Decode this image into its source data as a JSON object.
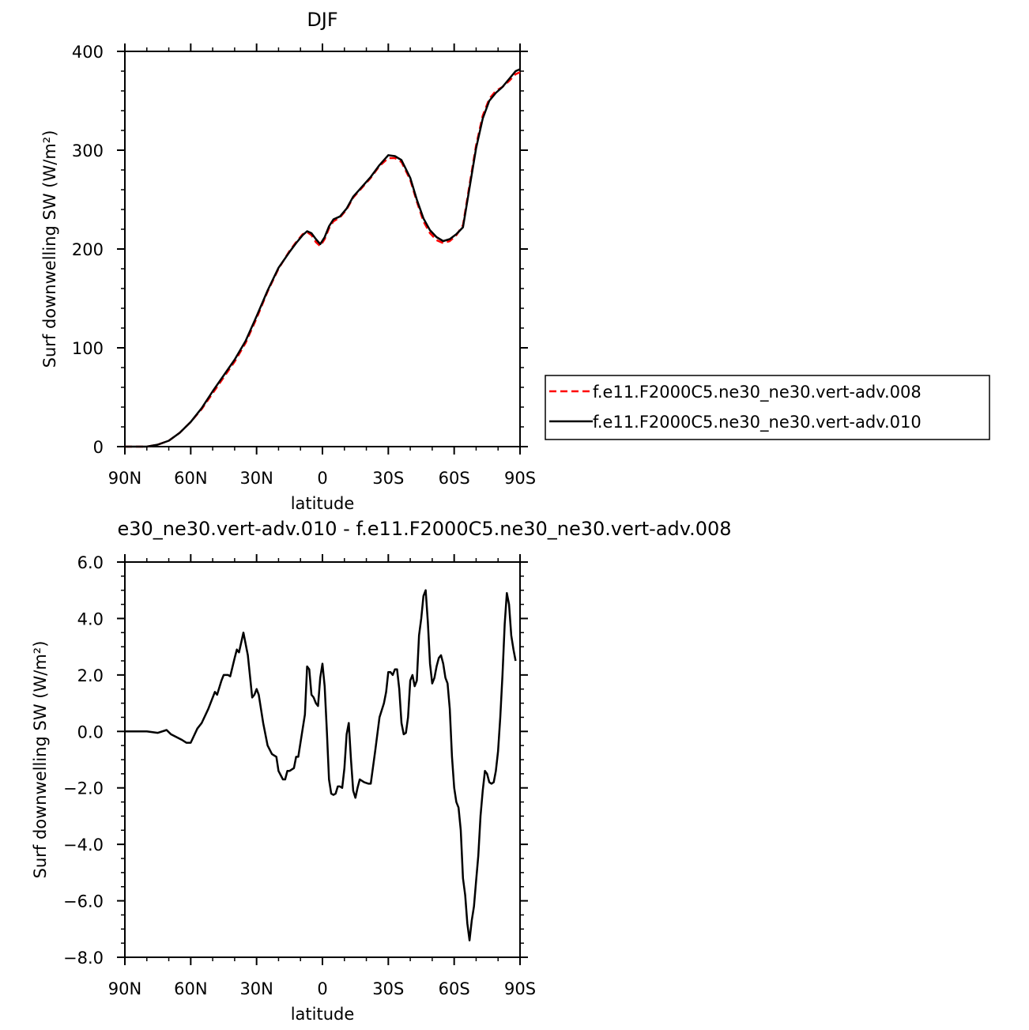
{
  "chart_data": [
    {
      "type": "line",
      "title": "DJF",
      "xlabel": "latitude",
      "ylabel": "Surf downwelling SW (W/m²)",
      "xlim": [
        -90,
        90
      ],
      "ylim": [
        0,
        400
      ],
      "x_ticks": [
        {
          "value": -90,
          "label": "90N"
        },
        {
          "value": -60,
          "label": "60N"
        },
        {
          "value": -30,
          "label": "30N"
        },
        {
          "value": 0,
          "label": "0"
        },
        {
          "value": 30,
          "label": "30S"
        },
        {
          "value": 60,
          "label": "60S"
        },
        {
          "value": 90,
          "label": "90S"
        }
      ],
      "y_ticks": [
        {
          "value": 0,
          "label": "0"
        },
        {
          "value": 100,
          "label": "100"
        },
        {
          "value": 200,
          "label": "200"
        },
        {
          "value": 300,
          "label": "300"
        },
        {
          "value": 400,
          "label": "400"
        }
      ],
      "legend_position": "right",
      "series": [
        {
          "name": "f.e11.F2000C5.ne30_ne30.vert-adv.008",
          "color": "#ff0000",
          "style": "dashed",
          "points": [
            [
              -90,
              0
            ],
            [
              -80,
              0
            ],
            [
              -75,
              2
            ],
            [
              -70,
              6
            ],
            [
              -65,
              14
            ],
            [
              -60,
              25
            ],
            [
              -55,
              38
            ],
            [
              -50,
              54
            ],
            [
              -45,
              70
            ],
            [
              -40,
              86
            ],
            [
              -35,
              105
            ],
            [
              -30,
              130
            ],
            [
              -25,
              157
            ],
            [
              -20,
              180
            ],
            [
              -15,
              198
            ],
            [
              -12,
              207
            ],
            [
              -9,
              215
            ],
            [
              -7,
              217
            ],
            [
              -5,
              214
            ],
            [
              -3,
              207
            ],
            [
              -1,
              203
            ],
            [
              1,
              210
            ],
            [
              3,
              221
            ],
            [
              5,
              228
            ],
            [
              8,
              232
            ],
            [
              11,
              240
            ],
            [
              14,
              252
            ],
            [
              18,
              262
            ],
            [
              22,
              272
            ],
            [
              26,
              284
            ],
            [
              30,
              292
            ],
            [
              33,
              292
            ],
            [
              36,
              288
            ],
            [
              40,
              270
            ],
            [
              43,
              248
            ],
            [
              46,
              228
            ],
            [
              49,
              216
            ],
            [
              52,
              209
            ],
            [
              55,
              206
            ],
            [
              58,
              208
            ],
            [
              61,
              214
            ],
            [
              64,
              224
            ],
            [
              67,
              265
            ],
            [
              70,
              305
            ],
            [
              73,
              335
            ],
            [
              76,
              352
            ],
            [
              79,
              360
            ],
            [
              82,
              364
            ],
            [
              85,
              370
            ],
            [
              88,
              377
            ],
            [
              90,
              379
            ]
          ]
        },
        {
          "name": "f.e11.F2000C5.ne30_ne30.vert-adv.010",
          "color": "#000000",
          "style": "solid",
          "points": [
            [
              -90,
              0
            ],
            [
              -80,
              0
            ],
            [
              -75,
              2
            ],
            [
              -70,
              6
            ],
            [
              -65,
              14
            ],
            [
              -60,
              25
            ],
            [
              -55,
              39
            ],
            [
              -50,
              56
            ],
            [
              -45,
              72
            ],
            [
              -40,
              88
            ],
            [
              -35,
              107
            ],
            [
              -30,
              132
            ],
            [
              -25,
              158
            ],
            [
              -20,
              181
            ],
            [
              -15,
              197
            ],
            [
              -12,
              206
            ],
            [
              -9,
              214
            ],
            [
              -7,
              218
            ],
            [
              -5,
              216
            ],
            [
              -3,
              210
            ],
            [
              -1,
              205
            ],
            [
              1,
              212
            ],
            [
              3,
              223
            ],
            [
              5,
              230
            ],
            [
              8,
              233
            ],
            [
              11,
              241
            ],
            [
              14,
              253
            ],
            [
              18,
              263
            ],
            [
              22,
              273
            ],
            [
              26,
              285
            ],
            [
              30,
              295
            ],
            [
              33,
              294
            ],
            [
              36,
              290
            ],
            [
              40,
              272
            ],
            [
              43,
              250
            ],
            [
              46,
              231
            ],
            [
              49,
              219
            ],
            [
              52,
              212
            ],
            [
              55,
              208
            ],
            [
              58,
              210
            ],
            [
              61,
              215
            ],
            [
              64,
              222
            ],
            [
              67,
              262
            ],
            [
              70,
              302
            ],
            [
              73,
              332
            ],
            [
              76,
              350
            ],
            [
              79,
              358
            ],
            [
              82,
              364
            ],
            [
              85,
              372
            ],
            [
              88,
              380
            ],
            [
              90,
              382
            ]
          ]
        }
      ]
    },
    {
      "type": "line",
      "title": "e30_ne30.vert-adv.010 - f.e11.F2000C5.ne30_ne30.vert-adv.008",
      "xlabel": "latitude",
      "ylabel": "Surf downwelling SW (W/m²)",
      "xlim": [
        -90,
        90
      ],
      "ylim": [
        -8,
        6
      ],
      "x_ticks": [
        {
          "value": -90,
          "label": "90N"
        },
        {
          "value": -60,
          "label": "60N"
        },
        {
          "value": -30,
          "label": "30N"
        },
        {
          "value": 0,
          "label": "0"
        },
        {
          "value": 30,
          "label": "30S"
        },
        {
          "value": 60,
          "label": "60S"
        },
        {
          "value": 90,
          "label": "90S"
        }
      ],
      "y_ticks": [
        {
          "value": -8,
          "label": "−8.0"
        },
        {
          "value": -6,
          "label": "−6.0"
        },
        {
          "value": -4,
          "label": "−4.0"
        },
        {
          "value": -2,
          "label": "−2.0"
        },
        {
          "value": 0,
          "label": "0.0"
        },
        {
          "value": 2,
          "label": "2.0"
        },
        {
          "value": 4,
          "label": "4.0"
        },
        {
          "value": 6,
          "label": "6.0"
        }
      ],
      "series": [
        {
          "color": "#000000",
          "style": "solid",
          "points": [
            [
              -90,
              0
            ],
            [
              -80,
              0
            ],
            [
              -75,
              -0.05
            ],
            [
              -71,
              0.05
            ],
            [
              -69,
              -0.1
            ],
            [
              -64,
              -0.3
            ],
            [
              -62,
              -0.4
            ],
            [
              -60,
              -0.4
            ],
            [
              -57,
              0.1
            ],
            [
              -55,
              0.3
            ],
            [
              -52,
              0.8
            ],
            [
              -49,
              1.4
            ],
            [
              -48,
              1.3
            ],
            [
              -46,
              1.8
            ],
            [
              -45,
              2.0
            ],
            [
              -43,
              2.0
            ],
            [
              -42,
              1.95
            ],
            [
              -40,
              2.6
            ],
            [
              -39,
              2.9
            ],
            [
              -38,
              2.8
            ],
            [
              -36,
              3.5
            ],
            [
              -34,
              2.7
            ],
            [
              -32,
              1.2
            ],
            [
              -31,
              1.3
            ],
            [
              -30,
              1.5
            ],
            [
              -29,
              1.3
            ],
            [
              -27,
              0.3
            ],
            [
              -25,
              -0.5
            ],
            [
              -23,
              -0.8
            ],
            [
              -21,
              -0.9
            ],
            [
              -20,
              -1.4
            ],
            [
              -18,
              -1.7
            ],
            [
              -17,
              -1.7
            ],
            [
              -16,
              -1.4
            ],
            [
              -15,
              -1.4
            ],
            [
              -13,
              -1.3
            ],
            [
              -12,
              -0.9
            ],
            [
              -11,
              -0.9
            ],
            [
              -9,
              0.1
            ],
            [
              -8,
              0.6
            ],
            [
              -7,
              2.3
            ],
            [
              -6,
              2.2
            ],
            [
              -5,
              1.3
            ],
            [
              -4,
              1.2
            ],
            [
              -3,
              1.0
            ],
            [
              -2,
              0.9
            ],
            [
              -1,
              1.9
            ],
            [
              0,
              2.4
            ],
            [
              1,
              1.6
            ],
            [
              2,
              0
            ],
            [
              3,
              -1.7
            ],
            [
              4,
              -2.2
            ],
            [
              5,
              -2.25
            ],
            [
              6,
              -2.2
            ],
            [
              7,
              -1.95
            ],
            [
              8,
              -1.95
            ],
            [
              9,
              -2.0
            ],
            [
              10,
              -1.3
            ],
            [
              11,
              -0.1
            ],
            [
              12,
              0.3
            ],
            [
              13,
              -1.0
            ],
            [
              14,
              -2.1
            ],
            [
              15,
              -2.35
            ],
            [
              16,
              -2.0
            ],
            [
              17,
              -1.7
            ],
            [
              19,
              -1.8
            ],
            [
              21,
              -1.85
            ],
            [
              22,
              -1.85
            ],
            [
              24,
              -0.7
            ],
            [
              26,
              0.5
            ],
            [
              28,
              1.0
            ],
            [
              29,
              1.4
            ],
            [
              30,
              2.1
            ],
            [
              31,
              2.1
            ],
            [
              32,
              2.0
            ],
            [
              33,
              2.2
            ],
            [
              34,
              2.2
            ],
            [
              35,
              1.5
            ],
            [
              36,
              0.3
            ],
            [
              37,
              -0.1
            ],
            [
              38,
              -0.05
            ],
            [
              39,
              0.5
            ],
            [
              40,
              1.8
            ],
            [
              41,
              2.0
            ],
            [
              42,
              1.6
            ],
            [
              43,
              1.8
            ],
            [
              44,
              3.4
            ],
            [
              45,
              4.0
            ],
            [
              46,
              4.8
            ],
            [
              47,
              5.0
            ],
            [
              48,
              3.9
            ],
            [
              49,
              2.4
            ],
            [
              50,
              1.7
            ],
            [
              51,
              1.9
            ],
            [
              52,
              2.3
            ],
            [
              53,
              2.6
            ],
            [
              54,
              2.7
            ],
            [
              55,
              2.4
            ],
            [
              56,
              1.9
            ],
            [
              57,
              1.7
            ],
            [
              58,
              0.8
            ],
            [
              59,
              -0.9
            ],
            [
              60,
              -2.0
            ],
            [
              61,
              -2.5
            ],
            [
              62,
              -2.7
            ],
            [
              63,
              -3.5
            ],
            [
              64,
              -5.2
            ],
            [
              65,
              -5.8
            ],
            [
              66,
              -6.8
            ],
            [
              67,
              -7.4
            ],
            [
              68,
              -6.7
            ],
            [
              69,
              -6.2
            ],
            [
              70,
              -5.3
            ],
            [
              71,
              -4.4
            ],
            [
              72,
              -3.0
            ],
            [
              73,
              -2.1
            ],
            [
              74,
              -1.4
            ],
            [
              75,
              -1.5
            ],
            [
              76,
              -1.8
            ],
            [
              77,
              -1.85
            ],
            [
              78,
              -1.8
            ],
            [
              79,
              -1.4
            ],
            [
              80,
              -0.7
            ],
            [
              81,
              0.5
            ],
            [
              82,
              2.0
            ],
            [
              83,
              3.8
            ],
            [
              84,
              4.9
            ],
            [
              85,
              4.5
            ],
            [
              86,
              3.4
            ],
            [
              87,
              2.9
            ],
            [
              88,
              2.5
            ]
          ]
        }
      ]
    }
  ]
}
